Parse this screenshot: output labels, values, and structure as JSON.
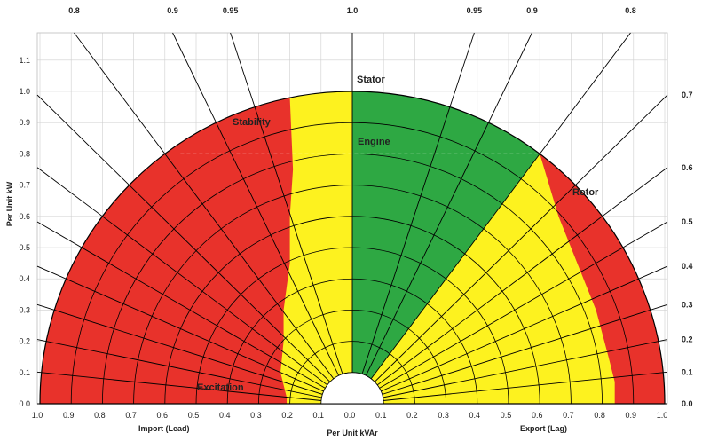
{
  "chart_data": {
    "type": "capability",
    "x_unit": "Per Unit kVAr",
    "y_unit": "Per Unit kW",
    "xlim": [
      -1.0,
      1.0
    ],
    "ylim": [
      0,
      1.1
    ],
    "x_ticks": [
      "1.0",
      "0.9",
      "0.8",
      "0.7",
      "0.6",
      "0.5",
      "0.4",
      "0.3",
      "0.2",
      "0.1",
      "0.0",
      "0.1",
      "0.2",
      "0.3",
      "0.4",
      "0.5",
      "0.6",
      "0.7",
      "0.8",
      "0.9",
      "1.0"
    ],
    "y_ticks": [
      "0.0",
      "0.1",
      "0.2",
      "0.3",
      "0.4",
      "0.5",
      "0.6",
      "0.7",
      "0.8",
      "0.9",
      "1.0",
      "1.1"
    ],
    "xlabel_left": "Import (Lead)",
    "xlabel_center": "Per Unit kVAr",
    "xlabel_right": "Export (Lag)",
    "ylabel": "Per Unit kW",
    "power_factor_lines": [
      {
        "label": "0.8",
        "pf": 0.8,
        "side": "lead"
      },
      {
        "label": "0.9",
        "pf": 0.9,
        "side": "lead"
      },
      {
        "label": "0.95",
        "pf": 0.95,
        "side": "lead"
      },
      {
        "label": "1.0",
        "pf": 1.0,
        "side": "center"
      },
      {
        "label": "0.95",
        "pf": 0.95,
        "side": "lag"
      },
      {
        "label": "0.9",
        "pf": 0.9,
        "side": "lag"
      },
      {
        "label": "0.8",
        "pf": 0.8,
        "side": "lag"
      }
    ],
    "right_pf_labels": [
      "0.7",
      "0.6",
      "0.5",
      "0.4",
      "0.3",
      "0.2",
      "0.1",
      "0.0"
    ],
    "right_pf_values": [
      0.7,
      0.6,
      0.5,
      0.4,
      0.3,
      0.2,
      0.1,
      0.0
    ],
    "left_pf_values": [
      0.7,
      0.6,
      0.5,
      0.4,
      0.3,
      0.2,
      0.1
    ],
    "arc_radii": [
      0.1,
      0.2,
      0.3,
      0.4,
      0.5,
      0.6,
      0.7,
      0.8,
      0.9
    ],
    "engine_limit_kw": 0.8,
    "stator_limit": 1.0,
    "zones": [
      {
        "name": "Stator",
        "label": "Stator"
      },
      {
        "name": "Stability",
        "label": "Stability"
      },
      {
        "name": "Engine",
        "label": "Engine"
      },
      {
        "name": "Rotor",
        "label": "Rotor"
      },
      {
        "name": "Excitation",
        "label": "Excitation"
      }
    ],
    "stability_boundary": [
      [
        -0.21,
        0.02
      ],
      [
        -0.23,
        0.1
      ],
      [
        -0.22,
        0.2
      ],
      [
        -0.22,
        0.3
      ],
      [
        -0.2,
        0.45
      ],
      [
        -0.2,
        0.6
      ],
      [
        -0.19,
        0.75
      ],
      [
        -0.2,
        0.98
      ]
    ],
    "rotor_boundary": [
      [
        0.6,
        0.8
      ],
      [
        0.66,
        0.6
      ],
      [
        0.72,
        0.45
      ],
      [
        0.78,
        0.3
      ],
      [
        0.82,
        0.15
      ],
      [
        0.84,
        0.07
      ]
    ],
    "colors": {
      "red": "#e8322b",
      "yellow": "#fdf21f",
      "green": "#2ea843",
      "grid": "#000000"
    }
  }
}
